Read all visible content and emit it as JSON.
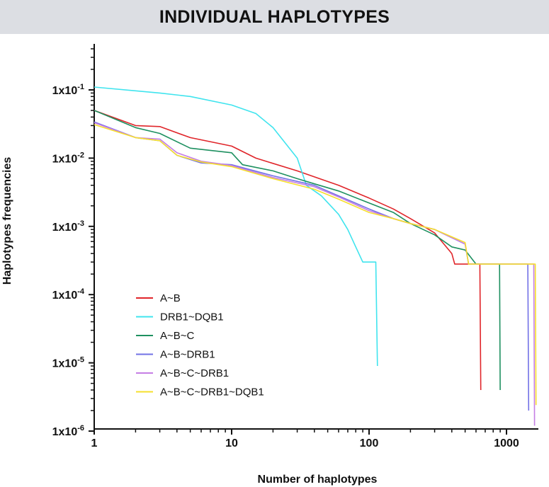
{
  "header": {
    "title": "INDIVIDUAL HAPLOTYPES"
  },
  "chart_data": {
    "type": "line",
    "title": "INDIVIDUAL HAPLOTYPES",
    "xlabel": "Number of haplotypes",
    "ylabel": "Haplotypes frequencies",
    "x_scale": "log",
    "y_scale": "log",
    "xlim": [
      1,
      2000
    ],
    "ylim": [
      1e-06,
      0.35
    ],
    "x_ticks": [
      {
        "value": 1,
        "label": "1"
      },
      {
        "value": 10,
        "label": "10"
      },
      {
        "value": 100,
        "label": "100"
      },
      {
        "value": 1000,
        "label": "1000"
      }
    ],
    "y_ticks": [
      {
        "value": 0.1,
        "base": "1x10",
        "exp": "-1"
      },
      {
        "value": 0.01,
        "base": "1x10",
        "exp": "-2"
      },
      {
        "value": 0.001,
        "base": "1x10",
        "exp": "-3"
      },
      {
        "value": 0.0001,
        "base": "1x10",
        "exp": "-4"
      },
      {
        "value": 1e-05,
        "base": "1x10",
        "exp": "-5"
      },
      {
        "value": 1e-06,
        "base": "1x10",
        "exp": "-6"
      }
    ],
    "grid": false,
    "legend_position": "bottom-left",
    "series": [
      {
        "name": "A~B",
        "color": "#e0252a",
        "points": [
          [
            1,
            0.05
          ],
          [
            2,
            0.03
          ],
          [
            3,
            0.029
          ],
          [
            5,
            0.02
          ],
          [
            10,
            0.015
          ],
          [
            15,
            0.01
          ],
          [
            30,
            0.0065
          ],
          [
            60,
            0.004
          ],
          [
            100,
            0.0026
          ],
          [
            150,
            0.0018
          ],
          [
            200,
            0.0013
          ],
          [
            300,
            0.0008
          ],
          [
            400,
            0.0004
          ],
          [
            420,
            0.00028
          ],
          [
            640,
            0.00028
          ],
          [
            650,
            4e-06
          ]
        ]
      },
      {
        "name": "DRB1~DQB1",
        "color": "#40e4ee",
        "points": [
          [
            1,
            0.11
          ],
          [
            3,
            0.09
          ],
          [
            5,
            0.08
          ],
          [
            10,
            0.06
          ],
          [
            15,
            0.045
          ],
          [
            20,
            0.028
          ],
          [
            30,
            0.01
          ],
          [
            35,
            0.004
          ],
          [
            45,
            0.0028
          ],
          [
            60,
            0.0015
          ],
          [
            70,
            0.0009
          ],
          [
            80,
            0.0005
          ],
          [
            90,
            0.0003
          ],
          [
            112,
            0.0003
          ],
          [
            115,
            9e-06
          ]
        ]
      },
      {
        "name": "A~B~C",
        "color": "#1e9060",
        "points": [
          [
            1,
            0.05
          ],
          [
            2,
            0.028
          ],
          [
            3,
            0.023
          ],
          [
            5,
            0.014
          ],
          [
            10,
            0.012
          ],
          [
            12,
            0.008
          ],
          [
            20,
            0.0065
          ],
          [
            30,
            0.005
          ],
          [
            40,
            0.0042
          ],
          [
            60,
            0.0033
          ],
          [
            100,
            0.0022
          ],
          [
            150,
            0.0016
          ],
          [
            200,
            0.0011
          ],
          [
            300,
            0.00075
          ],
          [
            400,
            0.0005
          ],
          [
            500,
            0.00045
          ],
          [
            600,
            0.00028
          ],
          [
            890,
            0.00028
          ],
          [
            900,
            4e-06
          ]
        ]
      },
      {
        "name": "A~B~DRB1",
        "color": "#7271e6",
        "points": [
          [
            1,
            0.034
          ],
          [
            2,
            0.02
          ],
          [
            3,
            0.018
          ],
          [
            4,
            0.011
          ],
          [
            6,
            0.0085
          ],
          [
            10,
            0.008
          ],
          [
            20,
            0.0055
          ],
          [
            40,
            0.004
          ],
          [
            60,
            0.0028
          ],
          [
            100,
            0.0018
          ],
          [
            150,
            0.0013
          ],
          [
            200,
            0.0011
          ],
          [
            300,
            0.0009
          ],
          [
            500,
            0.00055
          ],
          [
            530,
            0.00028
          ],
          [
            1430,
            0.00028
          ],
          [
            1450,
            2e-06
          ]
        ]
      },
      {
        "name": "A~B~C~DRB1",
        "color": "#c57ee4",
        "points": [
          [
            1,
            0.033
          ],
          [
            2,
            0.02
          ],
          [
            3,
            0.019
          ],
          [
            4,
            0.012
          ],
          [
            6,
            0.009
          ],
          [
            10,
            0.0078
          ],
          [
            20,
            0.0052
          ],
          [
            40,
            0.0038
          ],
          [
            60,
            0.0027
          ],
          [
            100,
            0.0017
          ],
          [
            150,
            0.0013
          ],
          [
            200,
            0.0011
          ],
          [
            300,
            0.0009
          ],
          [
            500,
            0.00055
          ],
          [
            530,
            0.00028
          ],
          [
            1580,
            0.00028
          ],
          [
            1600,
            1.2e-06
          ]
        ]
      },
      {
        "name": "A~B~C~DRB1~DQB1",
        "color": "#f6df2c",
        "points": [
          [
            1,
            0.031
          ],
          [
            2,
            0.02
          ],
          [
            3,
            0.018
          ],
          [
            4,
            0.011
          ],
          [
            6,
            0.0088
          ],
          [
            10,
            0.0075
          ],
          [
            20,
            0.005
          ],
          [
            40,
            0.0035
          ],
          [
            60,
            0.0025
          ],
          [
            100,
            0.0016
          ],
          [
            150,
            0.0013
          ],
          [
            200,
            0.0011
          ],
          [
            300,
            0.0009
          ],
          [
            500,
            0.00058
          ],
          [
            530,
            0.00028
          ],
          [
            1620,
            0.00028
          ],
          [
            1640,
            2.4e-06
          ]
        ]
      }
    ]
  }
}
